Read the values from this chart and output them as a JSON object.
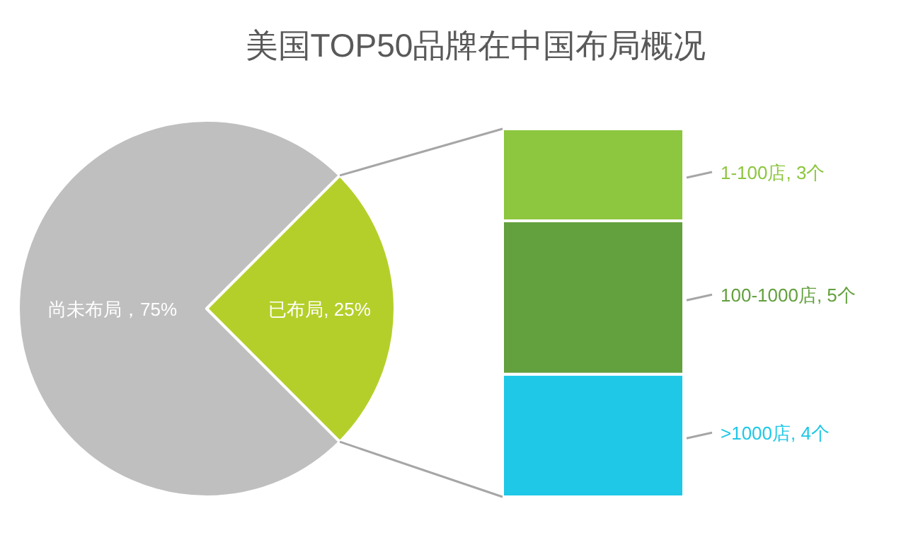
{
  "chart_data": [
    {
      "type": "pie",
      "title": "美国TOP50品牌在中国布局概况",
      "categories": [
        null,
        null
      ],
      "values": [
        75,
        25
      ],
      "colors": [
        "#bfbfbf",
        "#b5cf2a"
      ],
      "value_labels": [
        "尚未布局，75%",
        "已布局, 25%"
      ]
    },
    {
      "type": "bar",
      "stacked": true,
      "categories": [
        null
      ],
      "series": [
        {
          "color": "#1fc8e6",
          "values": [
            4
          ],
          "value_labels": [
            ">1000店, 4个"
          ]
        },
        {
          "color": "#63a03e",
          "values": [
            5
          ],
          "value_labels": [
            "100-1000店, 5个"
          ]
        },
        {
          "color": "#8dc63f",
          "values": [
            3
          ],
          "value_labels": [
            "1-100店, 3个"
          ]
        }
      ]
    }
  ]
}
